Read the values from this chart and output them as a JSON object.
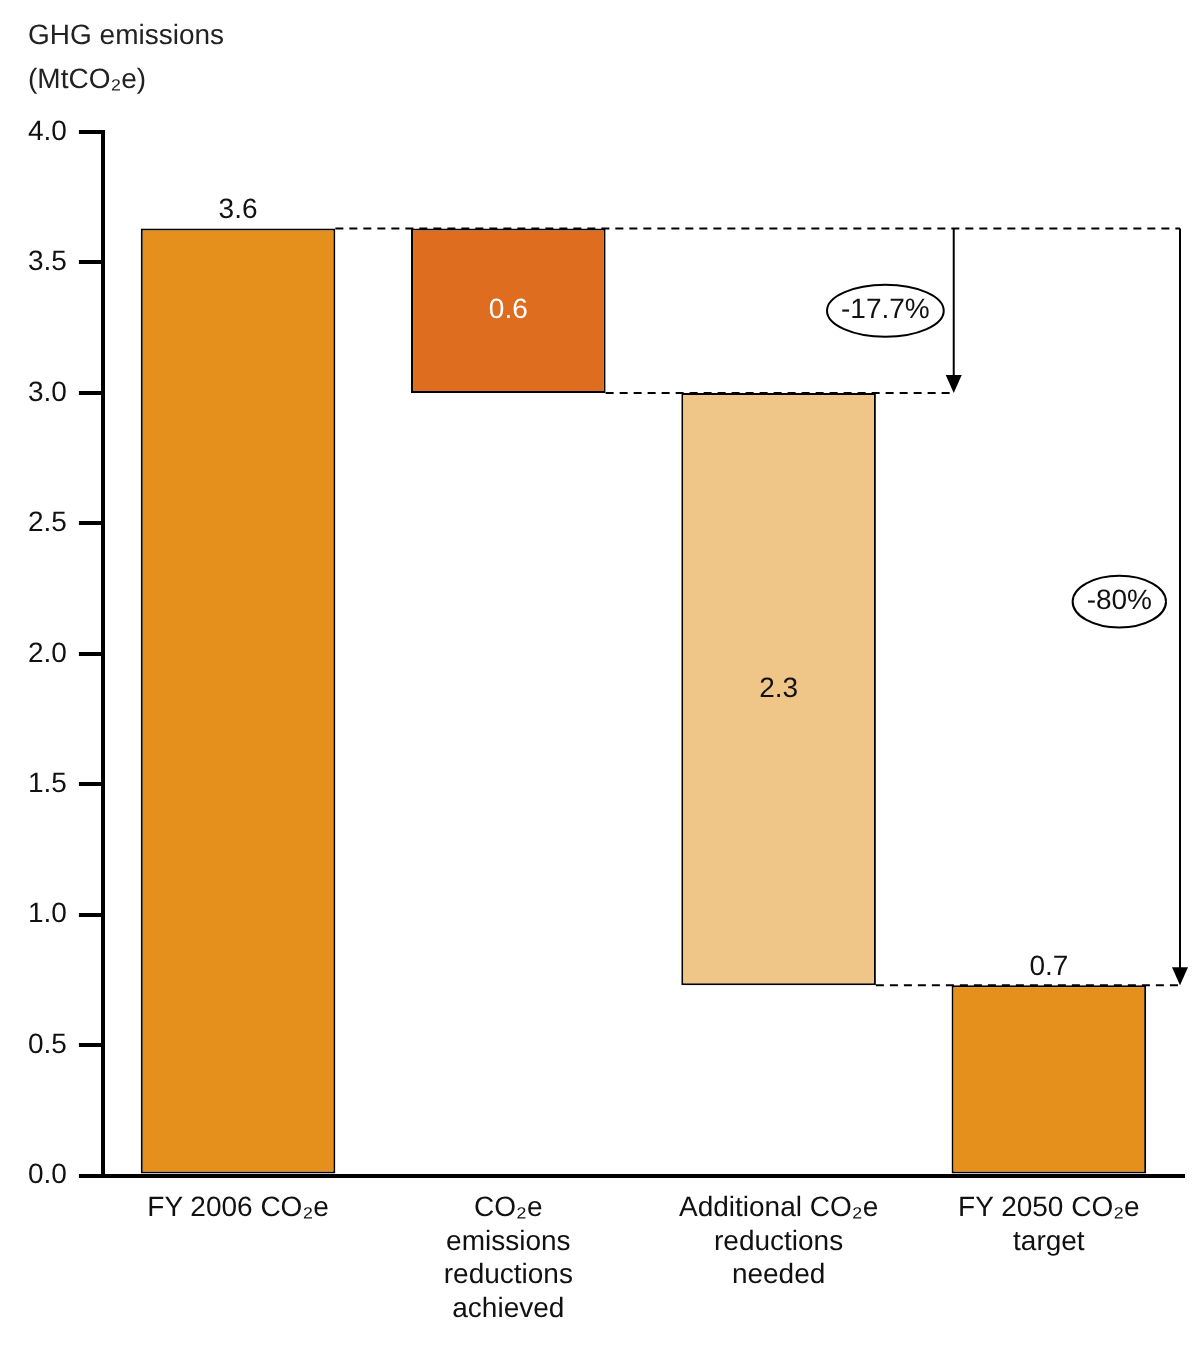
{
  "chart_data": {
    "type": "bar",
    "ylabel": "GHG emissions (MtCO₂e)",
    "categories": [
      "FY 2006 CO₂e",
      "CO₂e emissions reductions achieved",
      "Additional CO₂e reductions needed",
      "FY 2050 CO₂e target"
    ],
    "values": [
      3.63,
      0.63,
      2.27,
      0.73
    ],
    "base": [
      0,
      3.0,
      0.73,
      0
    ],
    "colors": [
      "#e58f1c",
      "#df6d1f",
      "#f0c588",
      "#e58f1c"
    ],
    "value_labels": [
      "3.6",
      "0.6",
      "2.3",
      "0.7"
    ],
    "ylim": [
      0,
      4.0
    ],
    "yticks": [
      {
        "value": 0,
        "label": "0.0"
      },
      {
        "value": 0.5,
        "label": "0.5"
      },
      {
        "value": 1.0,
        "label": "1.0"
      },
      {
        "value": 1.5,
        "label": "1.5"
      },
      {
        "value": 2.0,
        "label": "2.0"
      },
      {
        "value": 2.5,
        "label": "2.5"
      },
      {
        "value": 3.0,
        "label": "3.0"
      },
      {
        "value": 3.5,
        "label": "3.5"
      },
      {
        "value": 4.0,
        "label": "4.0"
      }
    ],
    "annotations": [
      "-17.7%",
      "-80%"
    ],
    "ref_lines": [
      {
        "axis": "y",
        "value": 3.63,
        "line_style": "dashed"
      },
      {
        "axis": "y",
        "value": 3.0,
        "line_style": "dashed"
      },
      {
        "axis": "y",
        "value": 0.73,
        "line_style": "dashed"
      }
    ],
    "grid": false,
    "legend": false
  }
}
